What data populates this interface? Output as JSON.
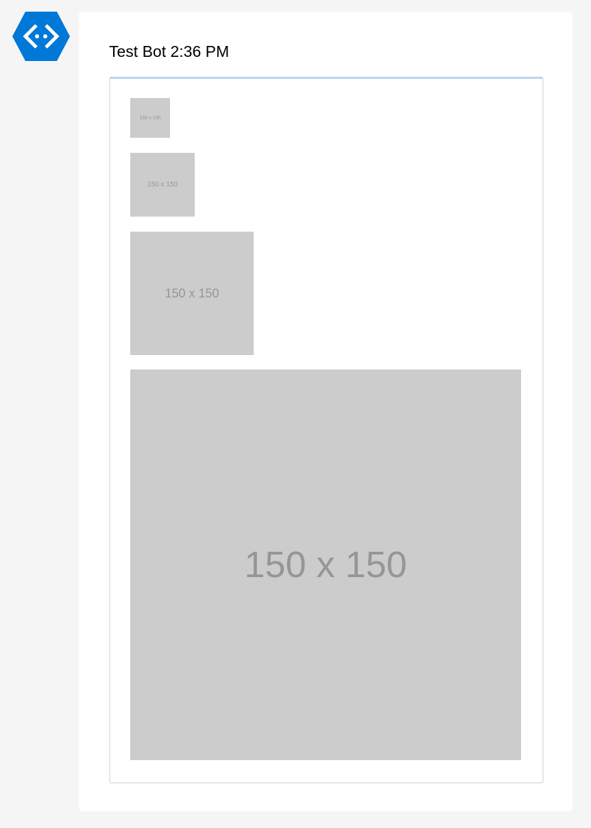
{
  "bot": {
    "avatar_icon": "bot-framework-hexagon-icon",
    "avatar_color": "#0078d7",
    "sender_name": "Test Bot",
    "timestamp": "2:36 PM"
  },
  "card": {
    "images": [
      {
        "label": "150 x 150",
        "size": "small"
      },
      {
        "label": "150 x 150",
        "size": "medium"
      },
      {
        "label": "150 x 150",
        "size": "large"
      },
      {
        "label": "150 x 150",
        "size": "stretch"
      }
    ]
  }
}
